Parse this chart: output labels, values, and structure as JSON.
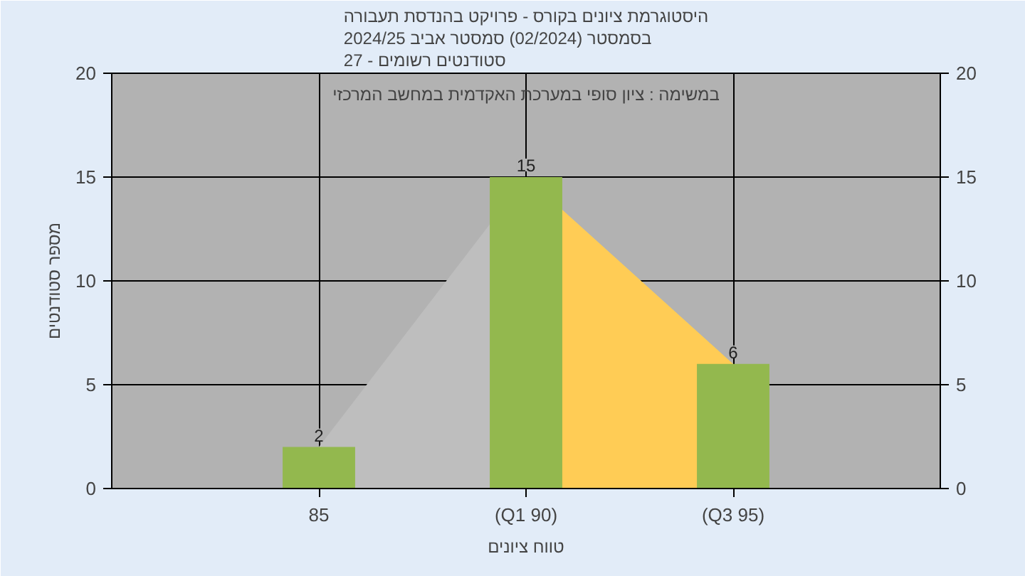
{
  "chart_data": {
    "type": "bar",
    "title": "היסטוגרמת ציונים בקורס - פרויקט בהנדסת תעבורה\nבסמסטר  (02/2024)  סמסטר אביב 2024/25\nסטודנטים רשומים - 27",
    "annotations": [
      "במשימה : ציון סופי במערכת האקדמית במחשב המרכזי"
    ],
    "xlabel": "טווח ציונים",
    "ylabel": "מספר סטודנטים",
    "categories": [
      "85",
      "(Q1 90)",
      "(Q3 95)"
    ],
    "series": [
      {
        "type": "area",
        "color": "#bebebe",
        "values": [
          2,
          15,
          null
        ]
      },
      {
        "type": "area",
        "color": "#ffcc55",
        "values": [
          null,
          15,
          6
        ]
      },
      {
        "color": "#93b84e",
        "values": [
          2,
          15,
          6
        ],
        "value_labels": [
          "2",
          "15",
          "6"
        ]
      }
    ],
    "ylim": [
      0,
      20
    ],
    "yticks": [
      0,
      5,
      10,
      15,
      20
    ],
    "y2lim": [
      0,
      20
    ],
    "y2ticks": [
      0,
      5,
      10,
      15,
      20
    ],
    "grid": true
  }
}
